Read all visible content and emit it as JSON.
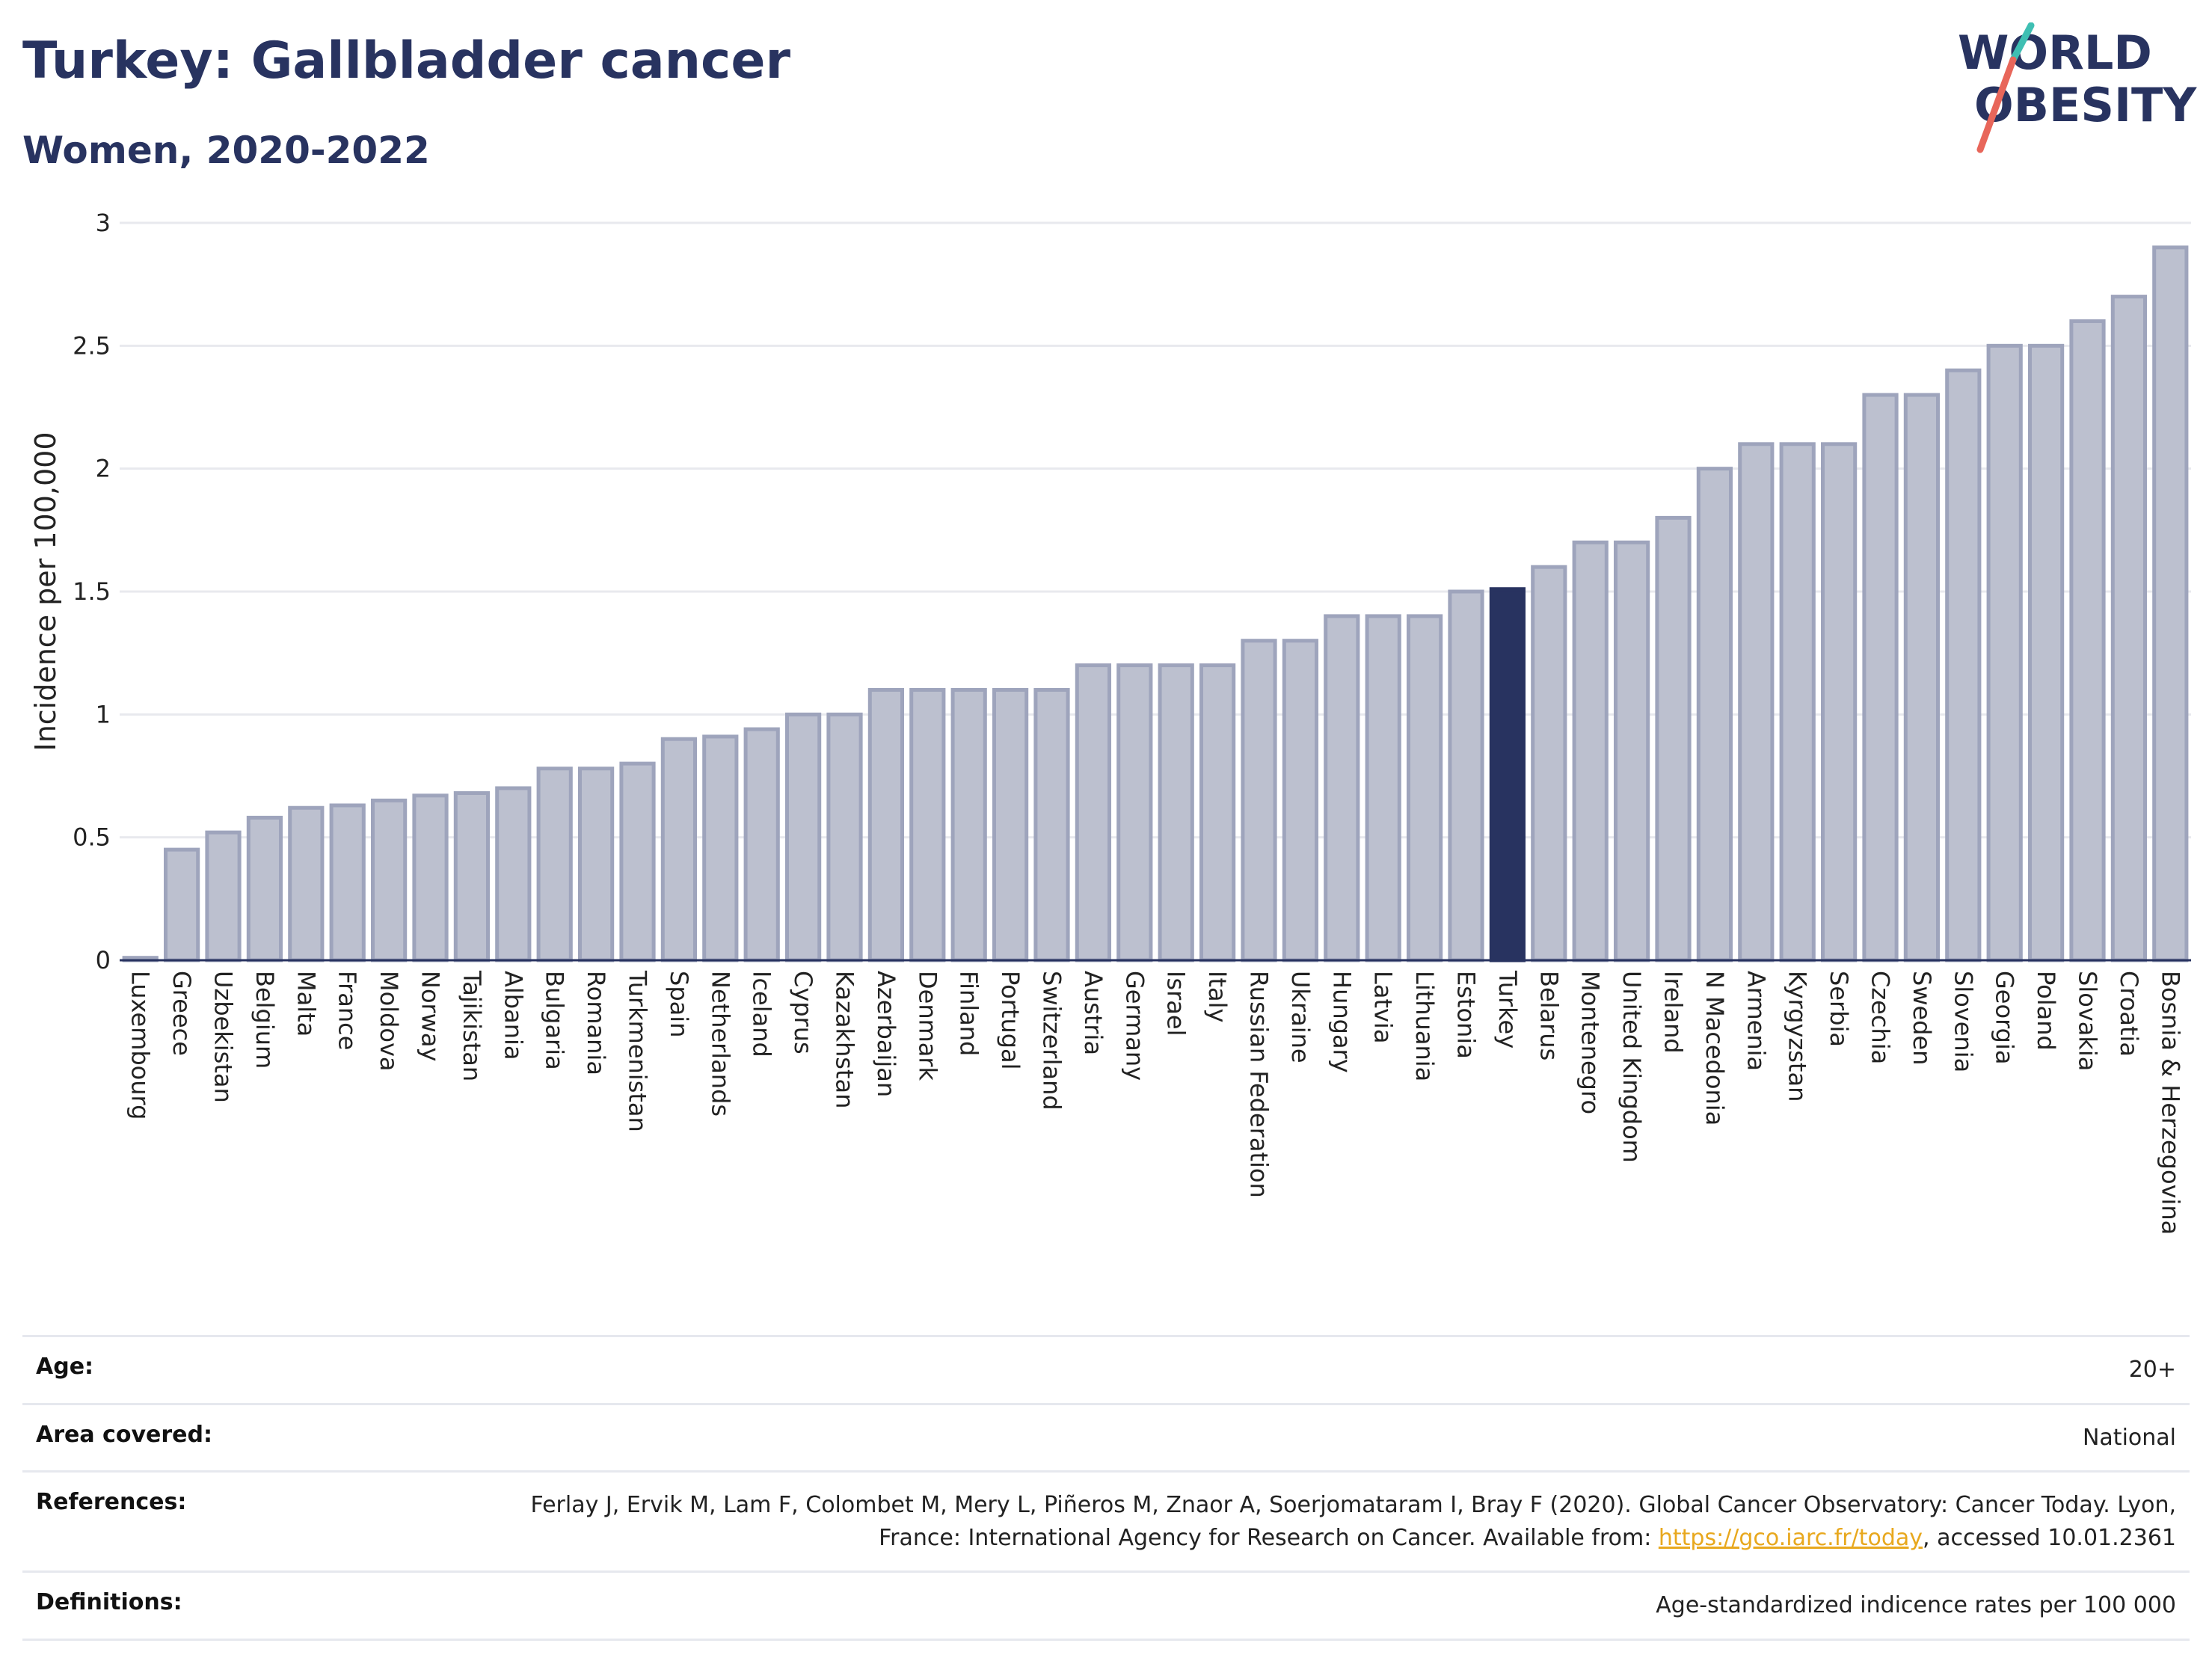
{
  "header": {
    "title": "Turkey: Gallbladder cancer",
    "subtitle": "Women, 2020-2022"
  },
  "logo": {
    "line1": "WORLD",
    "line2": "OBESITY",
    "accent_teal": "#3fbfb3",
    "accent_red": "#e8665a"
  },
  "colors": {
    "bar_fill": "#bcc0cf",
    "bar_stroke": "#9ea4bc",
    "highlight": "#283360",
    "title": "#283360"
  },
  "chart_data": {
    "type": "bar",
    "title": "Turkey: Gallbladder cancer",
    "subtitle": "Women, 2020-2022",
    "xlabel": "",
    "ylabel": "Incidence per 100,000",
    "ylim": [
      0,
      3
    ],
    "yticks": [
      "0",
      "0.5",
      "1",
      "1.5",
      "2",
      "2.5",
      "3"
    ],
    "grid": true,
    "highlight": "Turkey",
    "categories": [
      "Luxembourg",
      "Greece",
      "Uzbekistan",
      "Belgium",
      "Malta",
      "France",
      "Moldova",
      "Norway",
      "Tajikistan",
      "Albania",
      "Bulgaria",
      "Romania",
      "Turkmenistan",
      "Spain",
      "Netherlands",
      "Iceland",
      "Cyprus",
      "Kazakhstan",
      "Azerbaijan",
      "Denmark",
      "Finland",
      "Portugal",
      "Switzerland",
      "Austria",
      "Germany",
      "Israel",
      "Italy",
      "Russian Federation",
      "Ukraine",
      "Hungary",
      "Latvia",
      "Lithuania",
      "Estonia",
      "Turkey",
      "Belarus",
      "Montenegro",
      "United Kingdom",
      "Ireland",
      "N Macedonia",
      "Armenia",
      "Kyrgyzstan",
      "Serbia",
      "Czechia",
      "Sweden",
      "Slovenia",
      "Georgia",
      "Poland",
      "Slovakia",
      "Croatia",
      "Bosnia & Herzegovina"
    ],
    "values": [
      0.01,
      0.45,
      0.52,
      0.58,
      0.62,
      0.63,
      0.65,
      0.67,
      0.68,
      0.7,
      0.78,
      0.78,
      0.8,
      0.9,
      0.91,
      0.94,
      1.0,
      1.0,
      1.1,
      1.1,
      1.1,
      1.1,
      1.1,
      1.2,
      1.2,
      1.2,
      1.2,
      1.3,
      1.3,
      1.4,
      1.4,
      1.4,
      1.5,
      1.51,
      1.6,
      1.7,
      1.7,
      1.8,
      2.0,
      2.1,
      2.1,
      2.1,
      2.3,
      2.3,
      2.4,
      2.5,
      2.5,
      2.6,
      2.7,
      2.9
    ]
  },
  "meta": {
    "age_label": "Age:",
    "age_value": "20+",
    "area_label": "Area covered:",
    "area_value": "National",
    "references_label": "References:",
    "references_text": "Ferlay J, Ervik M, Lam F, Colombet M, Mery L, Piñeros M, Znaor A, Soerjomataram I, Bray F (2020). Global Cancer Observatory: Cancer Today. Lyon, France: International Agency for Research on Cancer. Available from: ",
    "references_link": "https://gco.iarc.fr/today",
    "references_suffix": ", accessed 10.01.2361",
    "definitions_label": "Definitions:",
    "definitions_value": "Age-standardized indicence rates per 100 000"
  }
}
